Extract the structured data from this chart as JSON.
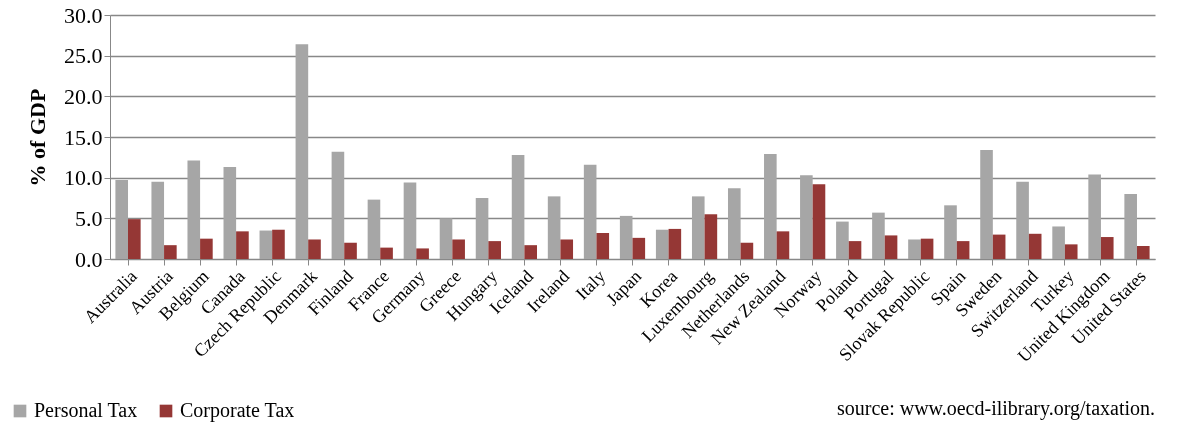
{
  "chart_data": {
    "type": "bar",
    "ylabel": "% of GDP",
    "categories": [
      "Australia",
      "Austria",
      "Belgium",
      "Canada",
      "Czech Republic",
      "Denmark",
      "Finland",
      "France",
      "Germany",
      "Greece",
      "Hungary",
      "Iceland",
      "Ireland",
      "Italy",
      "Japan",
      "Korea",
      "Luxembourg",
      "Netherlands",
      "New Zealand",
      "Norway",
      "Poland",
      "Portugal",
      "Slovak Republic",
      "Spain",
      "Sweden",
      "Switzerland",
      "Turkey",
      "United Kingdom",
      "United States"
    ],
    "series": [
      {
        "name": "Personal Tax",
        "color": "#a6a6a6",
        "values": [
          9.7,
          9.5,
          12.1,
          11.3,
          3.5,
          26.4,
          13.2,
          7.3,
          9.4,
          5.0,
          7.5,
          12.8,
          7.7,
          11.6,
          5.3,
          3.6,
          7.7,
          8.7,
          12.9,
          10.3,
          4.6,
          5.7,
          2.4,
          6.6,
          13.4,
          9.5,
          4.0,
          10.4,
          8.0
        ]
      },
      {
        "name": "Corporate Tax",
        "color": "#953735",
        "values": [
          4.9,
          1.7,
          2.5,
          3.4,
          3.6,
          2.4,
          2.0,
          1.4,
          1.3,
          2.4,
          2.2,
          1.7,
          2.4,
          3.2,
          2.6,
          3.7,
          5.5,
          2.0,
          3.4,
          9.2,
          2.2,
          2.9,
          2.5,
          2.2,
          3.0,
          3.1,
          1.8,
          2.7,
          1.6
        ]
      }
    ],
    "ylim": [
      0,
      30
    ],
    "yticks": [
      {
        "value": 0,
        "label": "0.0"
      },
      {
        "value": 5,
        "label": "5.0"
      },
      {
        "value": 10,
        "label": "10.0"
      },
      {
        "value": 15,
        "label": "15.0"
      },
      {
        "value": 20,
        "label": "20.0"
      },
      {
        "value": 25,
        "label": "25.0"
      },
      {
        "value": 30,
        "label": "30.0"
      }
    ],
    "grid": "y",
    "legend": "bottom left",
    "annotations": [
      "source: www.oecd-ilibrary.org/taxation."
    ]
  }
}
